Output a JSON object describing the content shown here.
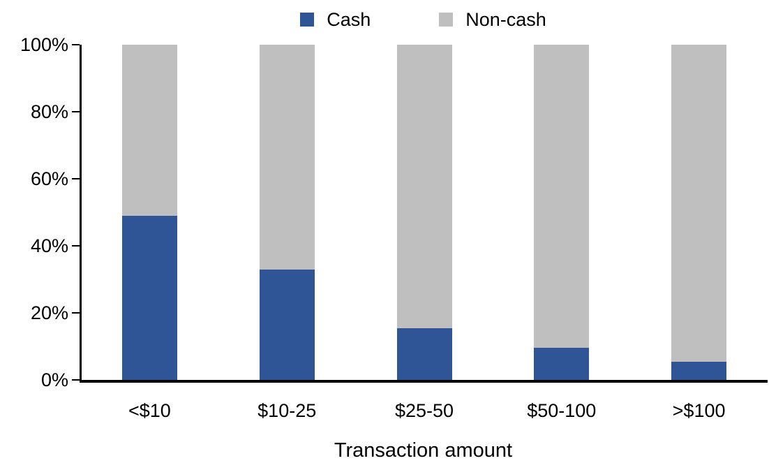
{
  "chart_data": {
    "type": "bar",
    "stacked": true,
    "stack_total": 100,
    "title": "",
    "xlabel": "Transaction amount",
    "ylabel": "",
    "categories": [
      "<$10",
      "$10-25",
      "$25-50",
      "$50-100",
      ">$100"
    ],
    "series": [
      {
        "name": "Cash",
        "color": "#2F5597",
        "values": [
          49,
          33,
          15.5,
          9.5,
          5.5
        ]
      },
      {
        "name": "Non-cash",
        "color": "#BFBFBF",
        "values": [
          51,
          67,
          84.5,
          90.5,
          94.5
        ]
      }
    ],
    "ylim": [
      0,
      100
    ],
    "ytick_step": 20,
    "ytick_labels": [
      "0%",
      "20%",
      "40%",
      "60%",
      "80%",
      "100%"
    ],
    "legend_position": "top-center",
    "grid": false,
    "axis_color": "#000000"
  }
}
